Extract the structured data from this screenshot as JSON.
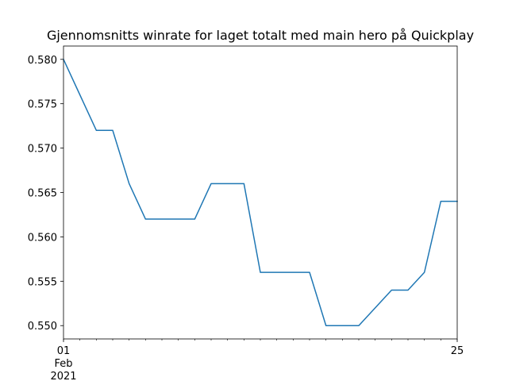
{
  "chart_data": {
    "type": "line",
    "title": "Gjennomsnitts winrate for laget totalt med main hero på Quickplay",
    "xlabel": "",
    "ylabel": "",
    "x": [
      "2021-02-01",
      "2021-02-02",
      "2021-02-03",
      "2021-02-04",
      "2021-02-05",
      "2021-02-06",
      "2021-02-07",
      "2021-02-08",
      "2021-02-09",
      "2021-02-10",
      "2021-02-11",
      "2021-02-12",
      "2021-02-13",
      "2021-02-14",
      "2021-02-15",
      "2021-02-16",
      "2021-02-17",
      "2021-02-18",
      "2021-02-19",
      "2021-02-20",
      "2021-02-21",
      "2021-02-22",
      "2021-02-23",
      "2021-02-24",
      "2021-02-25"
    ],
    "series": [
      {
        "values": [
          0.58,
          0.576,
          0.572,
          0.572,
          0.566,
          0.562,
          0.562,
          0.562,
          0.562,
          0.566,
          0.566,
          0.566,
          0.556,
          0.556,
          0.556,
          0.556,
          0.55,
          0.55,
          0.55,
          0.552,
          0.554,
          0.554,
          0.556,
          0.564,
          0.564
        ],
        "color": "#1f77b4"
      }
    ],
    "ylim": [
      0.5485,
      0.5815
    ],
    "xlim": [
      "2021-02-01",
      "2021-02-25"
    ],
    "yticks": [
      "0.550",
      "0.555",
      "0.560",
      "0.565",
      "0.570",
      "0.575",
      "0.580"
    ],
    "xtick_labels": [
      {
        "date": "2021-02-01",
        "lines": [
          "01",
          "Feb",
          "2021"
        ]
      },
      {
        "date": "2021-02-25",
        "lines": [
          "25"
        ]
      }
    ],
    "grid": false,
    "legend": "none"
  }
}
